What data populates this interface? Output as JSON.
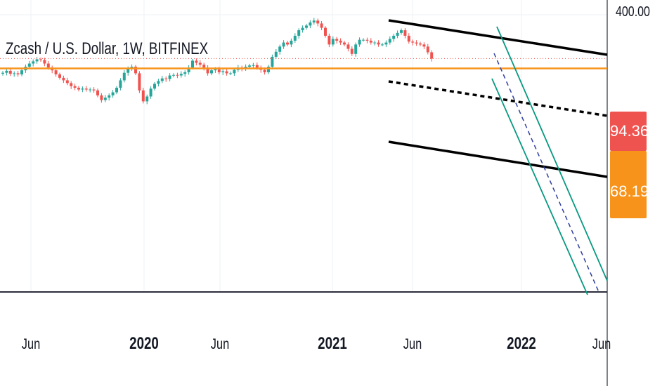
{
  "chart": {
    "title": "Zcash / U.S. Dollar, 1W, BITFINEX",
    "price_scale_top": "400.00",
    "last_price": "94.36",
    "last_price_color": "#ef5350",
    "support_level": "68.19",
    "support_color": "#f7931a"
  },
  "chart_data": {
    "type": "candlestick",
    "symbol": "Zcash / U.S. Dollar",
    "interval": "1W",
    "exchange": "BITFINEX",
    "x_tick_labels": [
      "Jun",
      "2020",
      "Jun",
      "2021",
      "Jun",
      "2022",
      "Jun"
    ],
    "y_tick_labels": [
      "400.00"
    ],
    "last_price": 94.36,
    "horizontal_level": 68.19,
    "colors": {
      "up": "#26a69a",
      "down": "#ef5350",
      "level": "#f7931a",
      "channel": "#000000",
      "falling_channel": "#089981",
      "falling_median": "#2f3e9e"
    },
    "close_series": [
      59,
      63,
      57,
      58,
      56,
      64,
      72,
      80,
      86,
      92,
      90,
      80,
      70,
      64,
      56,
      50,
      46,
      42,
      38,
      36,
      34,
      35,
      34,
      34,
      33,
      28,
      24,
      26,
      28,
      31,
      36,
      46,
      59,
      68,
      72,
      58,
      33,
      23,
      27,
      35,
      41,
      45,
      49,
      48,
      54,
      55,
      54,
      57,
      60,
      70,
      88,
      82,
      77,
      70,
      58,
      64,
      66,
      60,
      62,
      58,
      58,
      65,
      70,
      68,
      72,
      75,
      76,
      70,
      65,
      60,
      72,
      100,
      118,
      140,
      160,
      150,
      170,
      200,
      240,
      260,
      280,
      310,
      330,
      300,
      260,
      200,
      150,
      180,
      170,
      160,
      150,
      130,
      110,
      150,
      175,
      175,
      170,
      160,
      160,
      150,
      150,
      160,
      180,
      200,
      220,
      240,
      200,
      165,
      160,
      155,
      150,
      140,
      116,
      94
    ]
  }
}
